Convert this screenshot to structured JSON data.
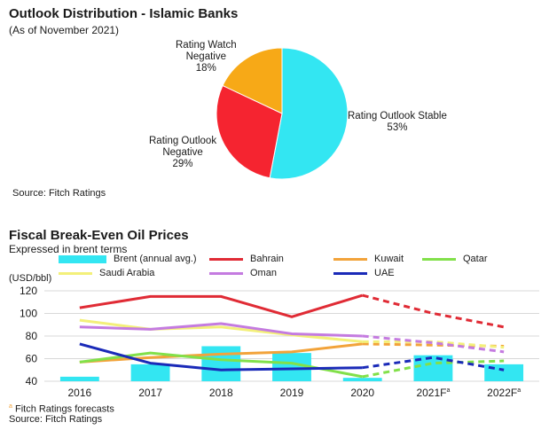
{
  "chart_data": [
    {
      "type": "pie",
      "title": "Outlook Distribution - Islamic Banks",
      "subtitle": "(As of November 2021)",
      "source": "Source: Fitch Ratings",
      "slices": [
        {
          "label_lines": [
            "Rating Outlook Stable"
          ],
          "pct_label": "53%",
          "value": 53,
          "color": "#33e6f2"
        },
        {
          "label_lines": [
            "Rating Outlook",
            "Negative"
          ],
          "pct_label": "29%",
          "value": 29,
          "color": "#f52430"
        },
        {
          "label_lines": [
            "Rating Watch",
            "Negative"
          ],
          "pct_label": "18%",
          "value": 18,
          "color": "#f7a917"
        }
      ]
    },
    {
      "type": "line",
      "title": "Fiscal Break-Even Oil Prices",
      "subtitle": "Expressed in brent terms",
      "ylabel": "(USD/bbl)",
      "ylim": [
        40,
        120
      ],
      "yticks": [
        40,
        60,
        80,
        100,
        120
      ],
      "categories": [
        "2016",
        "2017",
        "2018",
        "2019",
        "2020",
        "2021F",
        "2022F"
      ],
      "category_superscripts": [
        "",
        "",
        "",
        "",
        "",
        "a",
        "a"
      ],
      "forecast_from_index": 4,
      "bars": {
        "name": "Brent (annual avg.)",
        "color": "#33e6f2",
        "values": [
          44,
          55,
          71,
          65,
          43,
          63,
          55
        ]
      },
      "series": [
        {
          "name": "Bahrain",
          "color": "#e02b35",
          "values": [
            105,
            115,
            115,
            97,
            116,
            100,
            88
          ]
        },
        {
          "name": "Kuwait",
          "color": "#f2a33a",
          "values": [
            57,
            61,
            64,
            66,
            73,
            72,
            71
          ]
        },
        {
          "name": "Qatar",
          "color": "#82e04a",
          "values": [
            57,
            65,
            59,
            56,
            44,
            56,
            58
          ]
        },
        {
          "name": "Saudi Arabia",
          "color": "#f3f07a",
          "values": [
            94,
            86,
            88,
            81,
            75,
            75,
            70
          ]
        },
        {
          "name": "Oman",
          "color": "#c47be0",
          "values": [
            88,
            86,
            91,
            82,
            80,
            74,
            66
          ]
        },
        {
          "name": "UAE",
          "color": "#1a2ab8",
          "values": [
            73,
            56,
            50,
            51,
            52,
            61,
            50
          ]
        }
      ],
      "footnote_marker": "a",
      "footnote": "Fitch Ratings forecasts",
      "source": "Source: Fitch Ratings"
    }
  ]
}
